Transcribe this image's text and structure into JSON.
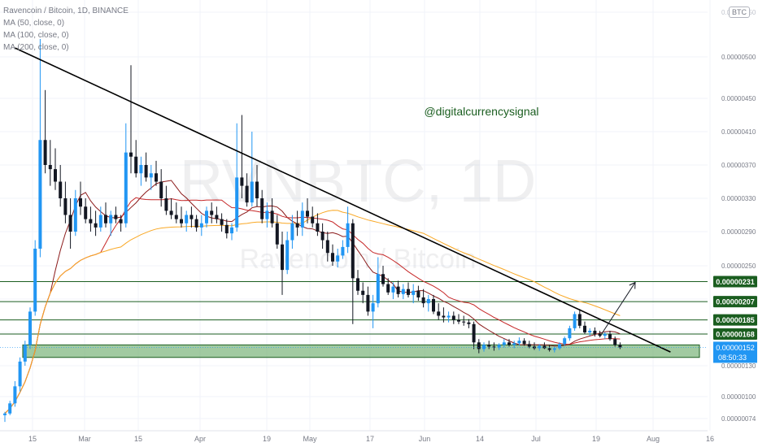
{
  "legend": {
    "title": "Ravencoin / Bitcoin, 1D, BINANCE",
    "ma50": "MA (50, close, 0)",
    "ma100": "MA (100, close, 0)",
    "ma200": "MA (200, close, 0)"
  },
  "currency_badge": "BTC",
  "watermark": {
    "symbol": "RVNBTC, 1D",
    "name": "Ravencoin / Bitcoin"
  },
  "annotation": "@digitalcurrencysignal",
  "countdown": "08:50:33",
  "colors": {
    "up": "#2196f3",
    "down": "#131722",
    "level_line": "#1b5e20",
    "label_bg": "#1b5e20",
    "zone_fill": "#81b881",
    "ma_dark": "#8b1a1a",
    "ma_red": "#c62828",
    "ma_orange": "#f9a825",
    "trendline": "#000000",
    "price_label": "#2196f3"
  },
  "chart_data": {
    "type": "candlestick",
    "title": "Ravencoin / Bitcoin, 1D, BINANCE",
    "y_ticks": [
      "0.00000550",
      "0.00000500",
      "0.00000450",
      "0.00000410",
      "0.00000370",
      "0.00000330",
      "0.00000290",
      "0.00000250",
      "0.00000210",
      "0.00000170",
      "0.00000130",
      "0.00000100",
      "0.00000074"
    ],
    "x_ticks": [
      "15",
      "Mar",
      "15",
      "Apr",
      "19",
      "May",
      "17",
      "Jun",
      "14",
      "Jul",
      "19",
      "Aug",
      "16"
    ],
    "levels": [
      {
        "label": "0.00000231",
        "value": 2.31e-06
      },
      {
        "label": "0.00000207",
        "value": 2.07e-06
      },
      {
        "label": "0.00000185",
        "value": 1.85e-06
      },
      {
        "label": "0.00000168",
        "value": 1.68e-06
      }
    ],
    "support_zone": [
      1.4e-06,
      1.55e-06
    ],
    "current_price": {
      "label": "0.00000152",
      "value": 1.52e-06
    },
    "trendline": {
      "from": [
        2,
        5.1e-06
      ],
      "to": [
        132,
        1.465e-06
      ]
    },
    "projection_arrow": {
      "from": [
        118,
        1.65e-06
      ],
      "to": [
        125,
        2.3e-06
      ]
    },
    "ohlc": [
      [
        7.8e-07,
        8.2e-07,
        7e-07,
        8e-07
      ],
      [
        8e-07,
        9.5e-07,
        7.8e-07,
        9.2e-07
      ],
      [
        9.2e-07,
        1.15e-06,
        8.8e-07,
        1.1e-06
      ],
      [
        1.1e-06,
        1.4e-06,
        1.05e-06,
        1.35e-06
      ],
      [
        1.35e-06,
        1.6e-06,
        1.3e-06,
        1.55e-06
      ],
      [
        1.55e-06,
        2e-06,
        1.5e-06,
        1.95e-06
      ],
      [
        1.95e-06,
        2.8e-06,
        1.9e-06,
        2.7e-06
      ],
      [
        2.7e-06,
        5.2e-06,
        2.6e-06,
        4e-06
      ],
      [
        4e-06,
        4.6e-06,
        3.6e-06,
        3.7e-06
      ],
      [
        3.7e-06,
        4e-06,
        3.45e-06,
        3.65e-06
      ],
      [
        3.65e-06,
        3.9e-06,
        3.4e-06,
        3.5e-06
      ],
      [
        3.5e-06,
        3.7e-06,
        3.2e-06,
        3.3e-06
      ],
      [
        3.3e-06,
        3.5e-06,
        3e-06,
        3.1e-06
      ],
      [
        3.1e-06,
        3.3e-06,
        2.7e-06,
        2.9e-06
      ],
      [
        2.9e-06,
        3.4e-06,
        2.85e-06,
        3.3e-06
      ],
      [
        3.3e-06,
        3.5e-06,
        3.1e-06,
        3.2e-06
      ],
      [
        3.2e-06,
        3.3e-06,
        3e-06,
        3.05e-06
      ],
      [
        3.05e-06,
        3.2e-06,
        2.9e-06,
        3e-06
      ],
      [
        3e-06,
        3.15e-06,
        2.85e-06,
        2.95e-06
      ],
      [
        2.95e-06,
        3.2e-06,
        2.9e-06,
        3.1e-06
      ],
      [
        3.1e-06,
        3.25e-06,
        2.95e-06,
        3e-06
      ],
      [
        3e-06,
        3.15e-06,
        2.85e-06,
        3.1e-06
      ],
      [
        3.1e-06,
        3.2e-06,
        3e-06,
        3.05e-06
      ],
      [
        3.05e-06,
        3.1e-06,
        2.9e-06,
        3e-06
      ],
      [
        3e-06,
        4.2e-06,
        2.95e-06,
        3.85e-06
      ],
      [
        3.85e-06,
        4.9e-06,
        3.6e-06,
        3.8e-06
      ],
      [
        3.8e-06,
        4e-06,
        3.55e-06,
        3.6e-06
      ],
      [
        3.6e-06,
        3.8e-06,
        3.45e-06,
        3.7e-06
      ],
      [
        3.7e-06,
        3.85e-06,
        3.5e-06,
        3.55e-06
      ],
      [
        3.55e-06,
        3.7e-06,
        3.4e-06,
        3.6e-06
      ],
      [
        3.6e-06,
        3.75e-06,
        3.45e-06,
        3.5e-06
      ],
      [
        3.5e-06,
        3.65e-06,
        3.2e-06,
        3.3e-06
      ],
      [
        3.3e-06,
        3.45e-06,
        3.1e-06,
        3.15e-06
      ],
      [
        3.15e-06,
        3.3e-06,
        3.05e-06,
        3.1e-06
      ],
      [
        3.1e-06,
        3.25e-06,
        3e-06,
        3.05e-06
      ],
      [
        3.05e-06,
        3.2e-06,
        2.95e-06,
        3e-06
      ],
      [
        3e-06,
        3.15e-06,
        2.9e-06,
        3.1e-06
      ],
      [
        3.1e-06,
        3.2e-06,
        2.95e-06,
        3.05e-06
      ],
      [
        3.05e-06,
        3.1e-06,
        2.9e-06,
        2.95e-06
      ],
      [
        2.95e-06,
        3.1e-06,
        2.85e-06,
        3e-06
      ],
      [
        3e-06,
        3.2e-06,
        2.95e-06,
        3.15e-06
      ],
      [
        3.15e-06,
        3.25e-06,
        3e-06,
        3.1e-06
      ],
      [
        3.1e-06,
        3.2e-06,
        3e-06,
        3.05e-06
      ],
      [
        3.05e-06,
        3.12e-06,
        2.9e-06,
        2.98e-06
      ],
      [
        2.98e-06,
        3.05e-06,
        2.82e-06,
        2.88e-06
      ],
      [
        2.88e-06,
        3e-06,
        2.8e-06,
        2.95e-06
      ],
      [
        2.95e-06,
        4.2e-06,
        2.9e-06,
        3.55e-06
      ],
      [
        3.55e-06,
        4.3e-06,
        3.3e-06,
        3.45e-06
      ],
      [
        3.45e-06,
        3.6e-06,
        3.2e-06,
        3.25e-06
      ],
      [
        3.25e-06,
        4.1e-06,
        3.2e-06,
        3.5e-06
      ],
      [
        3.5e-06,
        3.7e-06,
        3.2e-06,
        3.3e-06
      ],
      [
        3.3e-06,
        3.4e-06,
        3e-06,
        3.05e-06
      ],
      [
        3.05e-06,
        3.25e-06,
        2.95e-06,
        3.15e-06
      ],
      [
        3.15e-06,
        3.3e-06,
        2.95e-06,
        3e-06
      ],
      [
        3e-06,
        3.1e-06,
        2.7e-06,
        2.75e-06
      ],
      [
        2.75e-06,
        2.9e-06,
        2.15e-06,
        2.45e-06
      ],
      [
        2.45e-06,
        2.9e-06,
        2.4e-06,
        2.8e-06
      ],
      [
        2.8e-06,
        3.1e-06,
        2.7e-06,
        3e-06
      ],
      [
        3e-06,
        3.15e-06,
        2.85e-06,
        2.95e-06
      ],
      [
        2.95e-06,
        3.25e-06,
        2.85e-06,
        3.15e-06
      ],
      [
        3.15e-06,
        3.3e-06,
        3e-06,
        3.08e-06
      ],
      [
        3.08e-06,
        3.2e-06,
        2.95e-06,
        3e-06
      ],
      [
        3e-06,
        3.12e-06,
        2.85e-06,
        2.9e-06
      ],
      [
        2.9e-06,
        3e-06,
        2.7e-06,
        2.8e-06
      ],
      [
        2.8e-06,
        2.9e-06,
        2.55e-06,
        2.65e-06
      ],
      [
        2.65e-06,
        2.75e-06,
        2.5e-06,
        2.55e-06
      ],
      [
        2.55e-06,
        2.7e-06,
        2.48e-06,
        2.62e-06
      ],
      [
        2.62e-06,
        2.8e-06,
        2.58e-06,
        2.72e-06
      ],
      [
        2.72e-06,
        3.2e-06,
        2.65e-06,
        3e-06
      ],
      [
        3e-06,
        3.05e-06,
        1.8e-06,
        2.35e-06
      ],
      [
        2.35e-06,
        2.45e-06,
        2.15e-06,
        2.2e-06
      ],
      [
        2.2e-06,
        2.3e-06,
        2.05e-06,
        2.15e-06
      ],
      [
        2.15e-06,
        2.25e-06,
        1.9e-06,
        1.95e-06
      ],
      [
        1.95e-06,
        2.15e-06,
        1.75e-06,
        2.05e-06
      ],
      [
        2.05e-06,
        2.6e-06,
        2e-06,
        2.4e-06
      ],
      [
        2.4e-06,
        2.5e-06,
        2.25e-06,
        2.28e-06
      ],
      [
        2.28e-06,
        2.35e-06,
        2.15e-06,
        2.18e-06
      ],
      [
        2.18e-06,
        2.3e-06,
        2.1e-06,
        2.25e-06
      ],
      [
        2.25e-06,
        2.32e-06,
        2.12e-06,
        2.16e-06
      ],
      [
        2.16e-06,
        2.28e-06,
        2.1e-06,
        2.22e-06
      ],
      [
        2.22e-06,
        2.3e-06,
        2.12e-06,
        2.15e-06
      ],
      [
        2.15e-06,
        2.28e-06,
        2.05e-06,
        2.2e-06
      ],
      [
        2.2e-06,
        2.26e-06,
        2.08e-06,
        2.12e-06
      ],
      [
        2.12e-06,
        2.22e-06,
        2e-06,
        2.05e-06
      ],
      [
        2.05e-06,
        2.15e-06,
        1.95e-06,
        2.1e-06
      ],
      [
        2.1e-06,
        2.15e-06,
        1.92e-06,
        1.95e-06
      ],
      [
        1.95e-06,
        2.05e-06,
        1.85e-06,
        1.9e-06
      ],
      [
        1.9e-06,
        2e-06,
        1.82e-06,
        1.88e-06
      ],
      [
        1.88e-06,
        1.95e-06,
        1.82e-06,
        1.9e-06
      ],
      [
        1.9e-06,
        1.95e-06,
        1.8e-06,
        1.85e-06
      ],
      [
        1.85e-06,
        1.92e-06,
        1.8e-06,
        1.83e-06
      ],
      [
        1.83e-06,
        1.9e-06,
        1.78e-06,
        1.82e-06
      ],
      [
        1.82e-06,
        1.86e-06,
        1.75e-06,
        1.8e-06
      ],
      [
        1.8e-06,
        1.83e-06,
        1.5e-06,
        1.58e-06
      ],
      [
        1.58e-06,
        1.62e-06,
        1.45e-06,
        1.5e-06
      ],
      [
        1.5e-06,
        1.58e-06,
        1.47e-06,
        1.55e-06
      ],
      [
        1.55e-06,
        1.6e-06,
        1.5e-06,
        1.53e-06
      ],
      [
        1.53e-06,
        1.58e-06,
        1.48e-06,
        1.52e-06
      ],
      [
        1.52e-06,
        1.57e-06,
        1.49e-06,
        1.55e-06
      ],
      [
        1.55e-06,
        1.62e-06,
        1.52e-06,
        1.58e-06
      ],
      [
        1.58e-06,
        1.62e-06,
        1.53e-06,
        1.55e-06
      ],
      [
        1.55e-06,
        1.6e-06,
        1.51e-06,
        1.57e-06
      ],
      [
        1.57e-06,
        1.64e-06,
        1.54e-06,
        1.6e-06
      ],
      [
        1.6e-06,
        1.63e-06,
        1.54e-06,
        1.56e-06
      ],
      [
        1.56e-06,
        1.6e-06,
        1.51e-06,
        1.53e-06
      ],
      [
        1.53e-06,
        1.58e-06,
        1.49e-06,
        1.51e-06
      ],
      [
        1.51e-06,
        1.56e-06,
        1.48e-06,
        1.54e-06
      ],
      [
        1.54e-06,
        1.58e-06,
        1.5e-06,
        1.51e-06
      ],
      [
        1.51e-06,
        1.55e-06,
        1.47e-06,
        1.49e-06
      ],
      [
        1.49e-06,
        1.53e-06,
        1.46e-06,
        1.51e-06
      ],
      [
        1.51e-06,
        1.58e-06,
        1.49e-06,
        1.56e-06
      ],
      [
        1.56e-06,
        1.65e-06,
        1.54e-06,
        1.63e-06
      ],
      [
        1.63e-06,
        1.78e-06,
        1.6e-06,
        1.75e-06
      ],
      [
        1.75e-06,
        1.95e-06,
        1.72e-06,
        1.92e-06
      ],
      [
        1.92e-06,
        1.98e-06,
        1.75e-06,
        1.78e-06
      ],
      [
        1.78e-06,
        1.83e-06,
        1.68e-06,
        1.7e-06
      ],
      [
        1.7e-06,
        1.75e-06,
        1.66e-06,
        1.72e-06
      ],
      [
        1.72e-06,
        1.76e-06,
        1.65e-06,
        1.68e-06
      ],
      [
        1.68e-06,
        1.72e-06,
        1.64e-06,
        1.66e-06
      ],
      [
        1.66e-06,
        1.7e-06,
        1.62e-06,
        1.68e-06
      ],
      [
        1.68e-06,
        1.72e-06,
        1.6e-06,
        1.62e-06
      ],
      [
        1.62e-06,
        1.65e-06,
        1.53e-06,
        1.55e-06
      ],
      [
        1.55e-06,
        1.58e-06,
        1.5e-06,
        1.52e-06
      ]
    ]
  }
}
